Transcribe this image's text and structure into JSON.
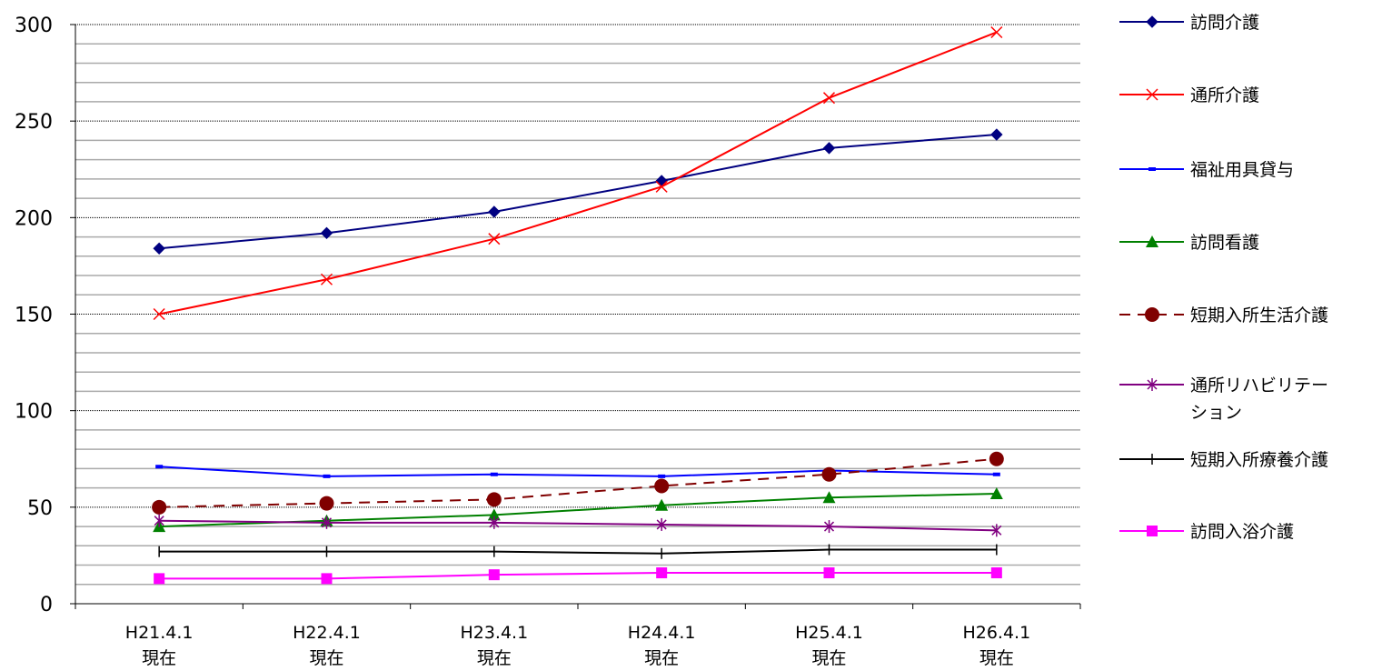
{
  "chart_data": {
    "type": "line",
    "categories": [
      [
        "H21.4.1",
        "現在"
      ],
      [
        "H22.4.1",
        "現在"
      ],
      [
        "H23.4.1",
        "現在"
      ],
      [
        "H24.4.1",
        "現在"
      ],
      [
        "H25.4.1",
        "現在"
      ],
      [
        "H26.4.1",
        "現在"
      ]
    ],
    "ylim": [
      0,
      300
    ],
    "yticks": [
      0,
      50,
      100,
      150,
      200,
      250,
      300
    ],
    "ytick_labels": [
      "0",
      "50",
      "100",
      "150",
      "200",
      "250",
      "300"
    ],
    "major_grid_step": 50,
    "minor_grid_step": 10,
    "legend_position": "right",
    "series": [
      {
        "name": "訪問介護",
        "color": "#000080",
        "marker": "diamond",
        "dash": false,
        "values": [
          184,
          192,
          203,
          219,
          236,
          243
        ]
      },
      {
        "name": "通所介護",
        "color": "#ff0000",
        "marker": "x",
        "dash": false,
        "values": [
          150,
          168,
          189,
          216,
          262,
          296
        ]
      },
      {
        "name": "福祉用具貸与",
        "color": "#0000ff",
        "marker": "dash",
        "dash": false,
        "values": [
          71,
          66,
          67,
          66,
          69,
          67
        ]
      },
      {
        "name": "訪問看護",
        "color": "#008000",
        "marker": "triangle",
        "dash": false,
        "values": [
          40,
          43,
          46,
          51,
          55,
          57
        ]
      },
      {
        "name": "短期入所生活介護",
        "color": "#800000",
        "marker": "circle",
        "dash": true,
        "values": [
          50,
          52,
          54,
          61,
          67,
          75
        ]
      },
      {
        "name": "通所リハビリテーション",
        "name_lines": [
          "通所リハビリテー",
          "ション"
        ],
        "color": "#800080",
        "marker": "star",
        "dash": false,
        "values": [
          43,
          42,
          42,
          41,
          40,
          38
        ]
      },
      {
        "name": "短期入所療養介護",
        "color": "#000000",
        "marker": "plus",
        "dash": false,
        "values": [
          27,
          27,
          27,
          26,
          28,
          28
        ]
      },
      {
        "name": "訪問入浴介護",
        "color": "#ff00ff",
        "marker": "square",
        "dash": false,
        "values": [
          13,
          13,
          15,
          16,
          16,
          16
        ]
      }
    ]
  }
}
